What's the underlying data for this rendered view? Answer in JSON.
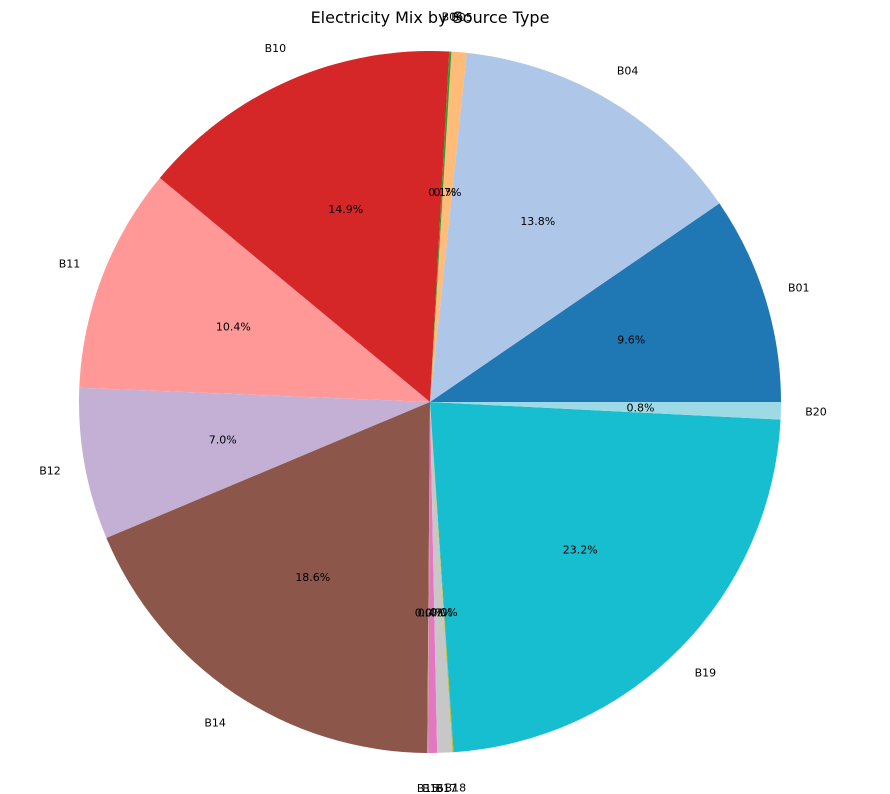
{
  "chart_data": {
    "type": "pie",
    "title": "Electricity Mix by Source Type",
    "categories": [
      "B01",
      "B04",
      "B05",
      "B06",
      "B10",
      "B11",
      "B12",
      "B14",
      "B15",
      "B16",
      "B17",
      "B18",
      "B19",
      "B20"
    ],
    "values": [
      9.6,
      13.8,
      0.7,
      0.1,
      14.9,
      10.4,
      7.0,
      18.6,
      0.05,
      0.4,
      0.7,
      0.05,
      23.2,
      0.8
    ],
    "pct_labels": [
      "9.6%",
      "13.8%",
      "0.7%",
      "0.1%",
      "14.9%",
      "10.4%",
      "7.0%",
      "18.6%",
      "0.0%",
      "0.4%",
      "0.7%",
      "0.0%",
      "23.2%",
      "0.8%"
    ],
    "colors": [
      "#1f77b4",
      "#aec7e8",
      "#ffbb78",
      "#2ca02c",
      "#d62728",
      "#ff9896",
      "#c5b0d5",
      "#8c564b",
      "#c49c94",
      "#e377c2",
      "#c7c7c7",
      "#bcbd22",
      "#17becf",
      "#9edae5"
    ],
    "start_angle_deg": 0,
    "direction": "counterclockwise",
    "legend": "none"
  }
}
